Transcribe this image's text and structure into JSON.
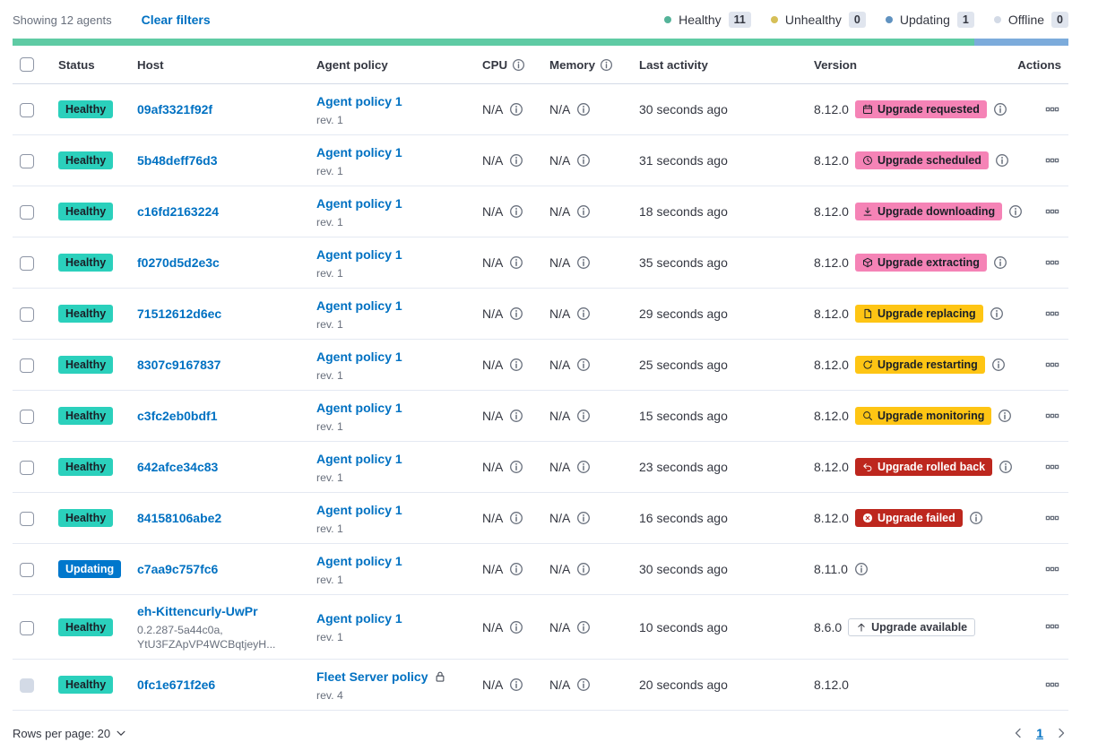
{
  "toolbar": {
    "showing_label": "Showing 12 agents",
    "clear_filters_label": "Clear filters"
  },
  "legend": {
    "items": [
      {
        "label": "Healthy",
        "count": "11",
        "color": "#54B399"
      },
      {
        "label": "Unhealthy",
        "count": "0",
        "color": "#D6BF57"
      },
      {
        "label": "Updating",
        "count": "1",
        "color": "#6092C0"
      },
      {
        "label": "Offline",
        "count": "0",
        "color": "#D3DAE6"
      }
    ]
  },
  "health_bar": {
    "segments": [
      {
        "status": "healthy",
        "color": "#5FCBA4",
        "fraction": 0.911
      },
      {
        "status": "updating",
        "color": "#7CABDB",
        "fraction": 0.089
      }
    ]
  },
  "table": {
    "columns": {
      "status": "Status",
      "host": "Host",
      "policy": "Agent policy",
      "cpu": "CPU",
      "memory": "Memory",
      "last_activity": "Last activity",
      "version": "Version",
      "actions": "Actions"
    },
    "rows": [
      {
        "status": "Healthy",
        "status_style": "healthy",
        "host": "09af3321f92f",
        "host_meta": [],
        "policy": "Agent policy 1",
        "policy_locked": false,
        "revision": "rev. 1",
        "cpu": "N/A",
        "memory": "N/A",
        "last_activity": "30 seconds ago",
        "version": "8.12.0",
        "upgrade": {
          "label": "Upgrade requested",
          "style": "accent",
          "icon": "calendar"
        },
        "version_info_icon": true,
        "checkbox_disabled": false
      },
      {
        "status": "Healthy",
        "status_style": "healthy",
        "host": "5b48deff76d3",
        "host_meta": [],
        "policy": "Agent policy 1",
        "policy_locked": false,
        "revision": "rev. 1",
        "cpu": "N/A",
        "memory": "N/A",
        "last_activity": "31 seconds ago",
        "version": "8.12.0",
        "upgrade": {
          "label": "Upgrade scheduled",
          "style": "accent",
          "icon": "clock"
        },
        "version_info_icon": true,
        "checkbox_disabled": false
      },
      {
        "status": "Healthy",
        "status_style": "healthy",
        "host": "c16fd2163224",
        "host_meta": [],
        "policy": "Agent policy 1",
        "policy_locked": false,
        "revision": "rev. 1",
        "cpu": "N/A",
        "memory": "N/A",
        "last_activity": "18 seconds ago",
        "version": "8.12.0",
        "upgrade": {
          "label": "Upgrade downloading",
          "style": "accent",
          "icon": "download"
        },
        "version_info_icon": true,
        "checkbox_disabled": false
      },
      {
        "status": "Healthy",
        "status_style": "healthy",
        "host": "f0270d5d2e3c",
        "host_meta": [],
        "policy": "Agent policy 1",
        "policy_locked": false,
        "revision": "rev. 1",
        "cpu": "N/A",
        "memory": "N/A",
        "last_activity": "35 seconds ago",
        "version": "8.12.0",
        "upgrade": {
          "label": "Upgrade extracting",
          "style": "accent",
          "icon": "package"
        },
        "version_info_icon": true,
        "checkbox_disabled": false
      },
      {
        "status": "Healthy",
        "status_style": "healthy",
        "host": "71512612d6ec",
        "host_meta": [],
        "policy": "Agent policy 1",
        "policy_locked": false,
        "revision": "rev. 1",
        "cpu": "N/A",
        "memory": "N/A",
        "last_activity": "29 seconds ago",
        "version": "8.12.0",
        "upgrade": {
          "label": "Upgrade replacing",
          "style": "warning",
          "icon": "document"
        },
        "version_info_icon": true,
        "checkbox_disabled": false
      },
      {
        "status": "Healthy",
        "status_style": "healthy",
        "host": "8307c9167837",
        "host_meta": [],
        "policy": "Agent policy 1",
        "policy_locked": false,
        "revision": "rev. 1",
        "cpu": "N/A",
        "memory": "N/A",
        "last_activity": "25 seconds ago",
        "version": "8.12.0",
        "upgrade": {
          "label": "Upgrade restarting",
          "style": "warning",
          "icon": "refresh"
        },
        "version_info_icon": true,
        "checkbox_disabled": false
      },
      {
        "status": "Healthy",
        "status_style": "healthy",
        "host": "c3fc2eb0bdf1",
        "host_meta": [],
        "policy": "Agent policy 1",
        "policy_locked": false,
        "revision": "rev. 1",
        "cpu": "N/A",
        "memory": "N/A",
        "last_activity": "15 seconds ago",
        "version": "8.12.0",
        "upgrade": {
          "label": "Upgrade monitoring",
          "style": "warning",
          "icon": "inspect"
        },
        "version_info_icon": true,
        "checkbox_disabled": false
      },
      {
        "status": "Healthy",
        "status_style": "healthy",
        "host": "642afce34c83",
        "host_meta": [],
        "policy": "Agent policy 1",
        "policy_locked": false,
        "revision": "rev. 1",
        "cpu": "N/A",
        "memory": "N/A",
        "last_activity": "23 seconds ago",
        "version": "8.12.0",
        "upgrade": {
          "label": "Upgrade rolled back",
          "style": "danger",
          "icon": "return"
        },
        "version_info_icon": true,
        "checkbox_disabled": false
      },
      {
        "status": "Healthy",
        "status_style": "healthy",
        "host": "84158106abe2",
        "host_meta": [],
        "policy": "Agent policy 1",
        "policy_locked": false,
        "revision": "rev. 1",
        "cpu": "N/A",
        "memory": "N/A",
        "last_activity": "16 seconds ago",
        "version": "8.12.0",
        "upgrade": {
          "label": "Upgrade failed",
          "style": "danger",
          "icon": "error"
        },
        "version_info_icon": true,
        "checkbox_disabled": false
      },
      {
        "status": "Updating",
        "status_style": "updating",
        "host": "c7aa9c757fc6",
        "host_meta": [],
        "policy": "Agent policy 1",
        "policy_locked": false,
        "revision": "rev. 1",
        "cpu": "N/A",
        "memory": "N/A",
        "last_activity": "30 seconds ago",
        "version": "8.11.0",
        "upgrade": null,
        "version_info_icon": true,
        "checkbox_disabled": false
      },
      {
        "status": "Healthy",
        "status_style": "healthy",
        "host": "eh-Kittencurly-UwPr",
        "host_meta": [
          "0.2.287-5a44c0a,",
          "YtU3FZApVP4WCBqtjeyH..."
        ],
        "policy": "Agent policy 1",
        "policy_locked": false,
        "revision": "rev. 1",
        "cpu": "N/A",
        "memory": "N/A",
        "last_activity": "10 seconds ago",
        "version": "8.6.0",
        "upgrade": {
          "label": "Upgrade available",
          "style": "hollow",
          "icon": "arrow-up"
        },
        "version_info_icon": false,
        "checkbox_disabled": false
      },
      {
        "status": "Healthy",
        "status_style": "healthy",
        "host": "0fc1e671f2e6",
        "host_meta": [],
        "policy": "Fleet Server policy",
        "policy_locked": true,
        "revision": "rev. 4",
        "cpu": "N/A",
        "memory": "N/A",
        "last_activity": "20 seconds ago",
        "version": "8.12.0",
        "upgrade": null,
        "version_info_icon": false,
        "checkbox_disabled": true
      }
    ]
  },
  "footer": {
    "rows_per_page_label": "Rows per page: 20",
    "current_page": "1"
  },
  "colors": {
    "link": "#0071C2",
    "healthy_status_badge": "#2BD0BC",
    "updating_status_badge": "#0077CC",
    "upgrade_accent_badge": "#F583B6",
    "upgrade_warning_badge": "#FEC514",
    "upgrade_danger_badge": "#BD271E",
    "text": "#343741",
    "subdued_text": "#69707D"
  }
}
